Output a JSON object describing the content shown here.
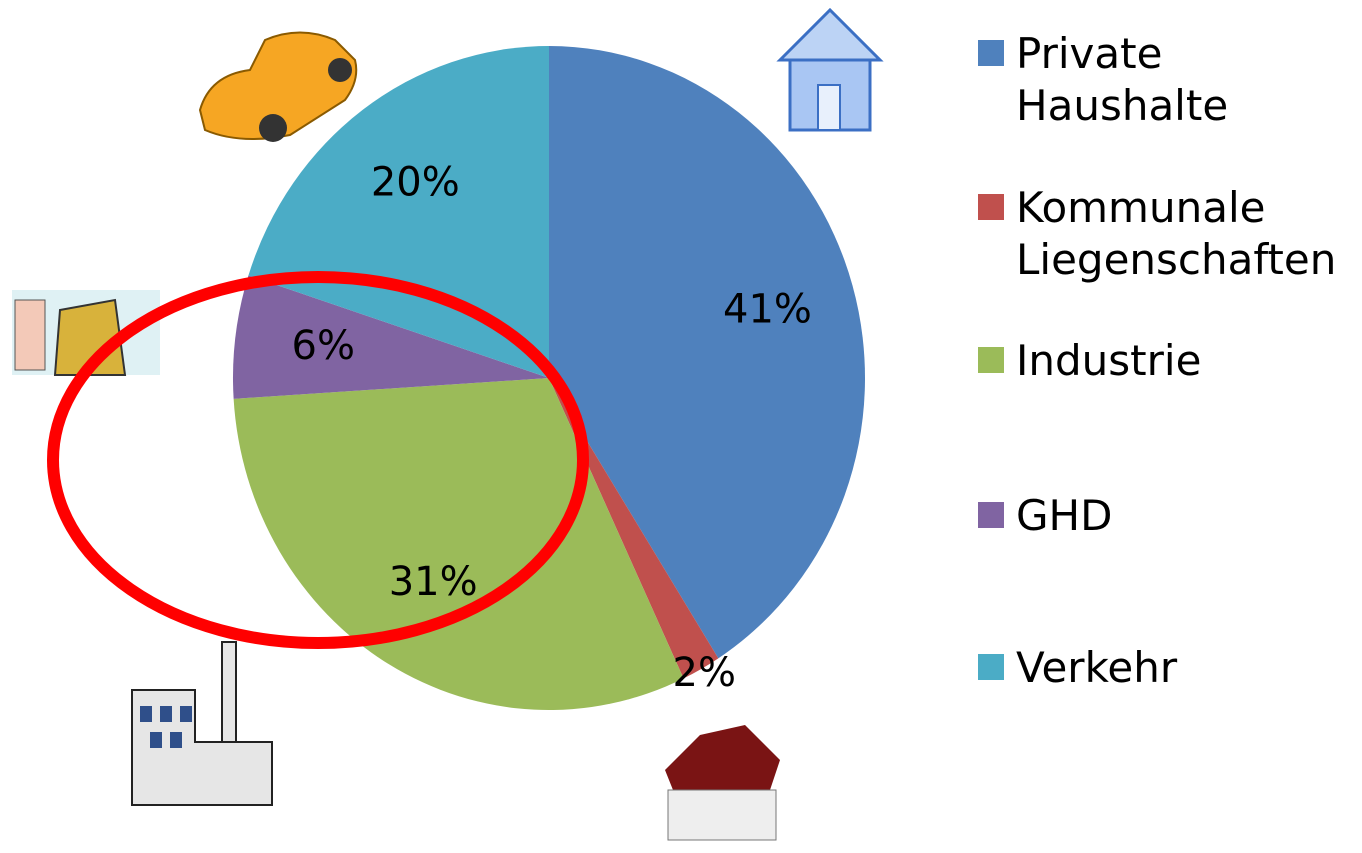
{
  "chart_data": {
    "type": "pie",
    "series": [
      {
        "name": "Private Haushalte",
        "color": "#4f81bd",
        "values": [
          41
        ],
        "value_labels": [
          "41%"
        ]
      },
      {
        "name": "Kommunale Liegenschaften",
        "color": "#c0504d",
        "values": [
          2
        ],
        "value_labels": [
          "2%"
        ]
      },
      {
        "name": "Industrie",
        "color": "#9bbb59",
        "values": [
          31
        ],
        "value_labels": [
          "31%"
        ]
      },
      {
        "name": "GHD",
        "color": "#8064a2",
        "values": [
          6
        ],
        "value_labels": [
          "6%"
        ]
      },
      {
        "name": "Verkehr",
        "color": "#4bacc6",
        "values": [
          20
        ],
        "value_labels": [
          "20%"
        ]
      }
    ]
  }
}
